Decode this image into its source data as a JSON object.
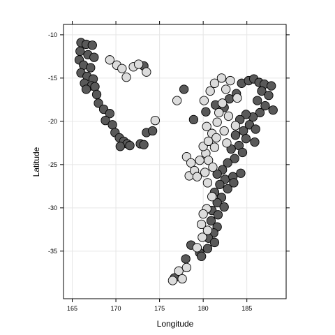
{
  "chart_data": {
    "type": "scatter",
    "title": "",
    "xlabel": "Longitude",
    "ylabel": "Latitude",
    "xlim": [
      164,
      189.5
    ],
    "ylim": [
      -40.5,
      -8.8
    ],
    "xticks": [
      165,
      170,
      175,
      180,
      185
    ],
    "yticks": [
      -10,
      -15,
      -20,
      -25,
      -30,
      -35
    ],
    "xtick_labels": [
      "165",
      "170",
      "175",
      "180",
      "185"
    ],
    "ytick_labels": [
      "-10",
      "-15",
      "-20",
      "-25",
      "-30",
      "-35"
    ],
    "grid": true,
    "legend": "none",
    "colors": {
      "deep": "#595959",
      "shallow": "#dcdcdc",
      "outline": "#000000",
      "grid": "#e6e6e6"
    },
    "groups": [
      {
        "fill": "#595959",
        "points": [
          [
            166.0,
            -10.9
          ],
          [
            166.6,
            -11.1
          ],
          [
            167.3,
            -11.2
          ],
          [
            165.9,
            -11.9
          ],
          [
            166.8,
            -12.3
          ],
          [
            167.5,
            -12.6
          ],
          [
            165.8,
            -12.9
          ],
          [
            166.3,
            -13.5
          ],
          [
            167.1,
            -13.8
          ],
          [
            166.0,
            -14.4
          ],
          [
            166.7,
            -14.8
          ],
          [
            167.4,
            -15.1
          ],
          [
            166.4,
            -15.6
          ],
          [
            167.2,
            -15.9
          ],
          [
            166.6,
            -16.3
          ],
          [
            167.6,
            -16.0
          ],
          [
            167.8,
            -16.9
          ],
          [
            168.0,
            -17.9
          ],
          [
            168.6,
            -18.6
          ],
          [
            169.3,
            -19.1
          ],
          [
            168.8,
            -19.9
          ],
          [
            169.6,
            -20.4
          ],
          [
            169.9,
            -21.3
          ],
          [
            170.4,
            -21.9
          ],
          [
            170.9,
            -22.3
          ],
          [
            171.3,
            -22.6
          ],
          [
            170.5,
            -22.9
          ],
          [
            171.6,
            -22.8
          ],
          [
            172.8,
            -22.6
          ],
          [
            173.2,
            -22.7
          ],
          [
            173.5,
            -21.3
          ],
          [
            174.2,
            -21.1
          ],
          [
            173.2,
            -13.6
          ],
          [
            177.8,
            -16.3
          ],
          [
            178.9,
            -19.8
          ],
          [
            180.3,
            -18.9
          ],
          [
            181.4,
            -18.1
          ],
          [
            182.4,
            -18.4
          ],
          [
            183.0,
            -17.4
          ],
          [
            183.8,
            -16.8
          ],
          [
            184.4,
            -15.6
          ],
          [
            185.2,
            -15.3
          ],
          [
            185.8,
            -15.1
          ],
          [
            186.4,
            -15.5
          ],
          [
            187.0,
            -15.7
          ],
          [
            187.8,
            -15.9
          ],
          [
            186.7,
            -16.5
          ],
          [
            187.5,
            -17.0
          ],
          [
            186.2,
            -17.6
          ],
          [
            187.1,
            -18.2
          ],
          [
            188.0,
            -18.7
          ],
          [
            186.5,
            -19.0
          ],
          [
            185.7,
            -19.5
          ],
          [
            184.9,
            -19.2
          ],
          [
            184.2,
            -19.8
          ],
          [
            185.3,
            -20.4
          ],
          [
            186.0,
            -20.9
          ],
          [
            184.6,
            -21.1
          ],
          [
            183.7,
            -21.6
          ],
          [
            184.9,
            -22.0
          ],
          [
            185.9,
            -22.4
          ],
          [
            184.1,
            -22.8
          ],
          [
            183.2,
            -23.2
          ],
          [
            184.5,
            -23.6
          ],
          [
            183.6,
            -24.3
          ],
          [
            182.8,
            -24.8
          ],
          [
            182.2,
            -25.6
          ],
          [
            181.6,
            -26.1
          ],
          [
            182.5,
            -26.7
          ],
          [
            183.4,
            -26.4
          ],
          [
            184.3,
            -26.0
          ],
          [
            181.9,
            -27.3
          ],
          [
            182.8,
            -27.8
          ],
          [
            183.5,
            -27.1
          ],
          [
            181.3,
            -28.2
          ],
          [
            182.1,
            -28.8
          ],
          [
            181.6,
            -29.4
          ],
          [
            182.4,
            -29.9
          ],
          [
            181.0,
            -30.3
          ],
          [
            181.7,
            -30.8
          ],
          [
            180.9,
            -31.5
          ],
          [
            181.6,
            -32.2
          ],
          [
            181.2,
            -32.9
          ],
          [
            180.6,
            -33.5
          ],
          [
            181.3,
            -34.0
          ],
          [
            180.5,
            -34.7
          ],
          [
            179.6,
            -35.2
          ],
          [
            178.6,
            -34.3
          ],
          [
            179.8,
            -35.6
          ],
          [
            178.0,
            -35.9
          ],
          [
            176.7,
            -38.1
          ]
        ]
      },
      {
        "fill": "#dcdcdc",
        "points": [
          [
            169.3,
            -12.9
          ],
          [
            170.1,
            -13.5
          ],
          [
            170.7,
            -13.9
          ],
          [
            171.2,
            -14.9
          ],
          [
            172.0,
            -13.7
          ],
          [
            172.6,
            -13.4
          ],
          [
            173.5,
            -14.3
          ],
          [
            174.5,
            -19.9
          ],
          [
            177.0,
            -17.6
          ],
          [
            178.1,
            -24.1
          ],
          [
            178.6,
            -24.8
          ],
          [
            178.4,
            -26.3
          ],
          [
            179.0,
            -25.7
          ],
          [
            179.6,
            -24.5
          ],
          [
            180.3,
            -23.7
          ],
          [
            180.0,
            -22.9
          ],
          [
            180.6,
            -22.3
          ],
          [
            181.0,
            -21.4
          ],
          [
            180.4,
            -20.6
          ],
          [
            181.6,
            -20.1
          ],
          [
            180.1,
            -17.6
          ],
          [
            180.8,
            -16.5
          ],
          [
            181.3,
            -15.6
          ],
          [
            182.1,
            -15.0
          ],
          [
            183.1,
            -15.3
          ],
          [
            182.6,
            -16.3
          ],
          [
            183.9,
            -17.3
          ],
          [
            182.2,
            -17.9
          ],
          [
            181.8,
            -19.0
          ],
          [
            182.9,
            -19.4
          ],
          [
            183.7,
            -20.5
          ],
          [
            182.4,
            -21.1
          ],
          [
            181.5,
            -21.9
          ],
          [
            182.7,
            -22.5
          ],
          [
            181.3,
            -23.0
          ],
          [
            180.6,
            -24.5
          ],
          [
            181.1,
            -25.3
          ],
          [
            180.2,
            -25.9
          ],
          [
            179.3,
            -26.4
          ],
          [
            180.5,
            -27.1
          ],
          [
            181.0,
            -28.7
          ],
          [
            180.4,
            -30.1
          ],
          [
            180.0,
            -30.7
          ],
          [
            179.8,
            -31.9
          ],
          [
            180.5,
            -32.6
          ],
          [
            179.9,
            -33.4
          ],
          [
            179.3,
            -34.6
          ],
          [
            177.2,
            -37.3
          ],
          [
            178.1,
            -36.9
          ],
          [
            177.6,
            -38.2
          ],
          [
            176.5,
            -38.4
          ]
        ]
      }
    ]
  }
}
